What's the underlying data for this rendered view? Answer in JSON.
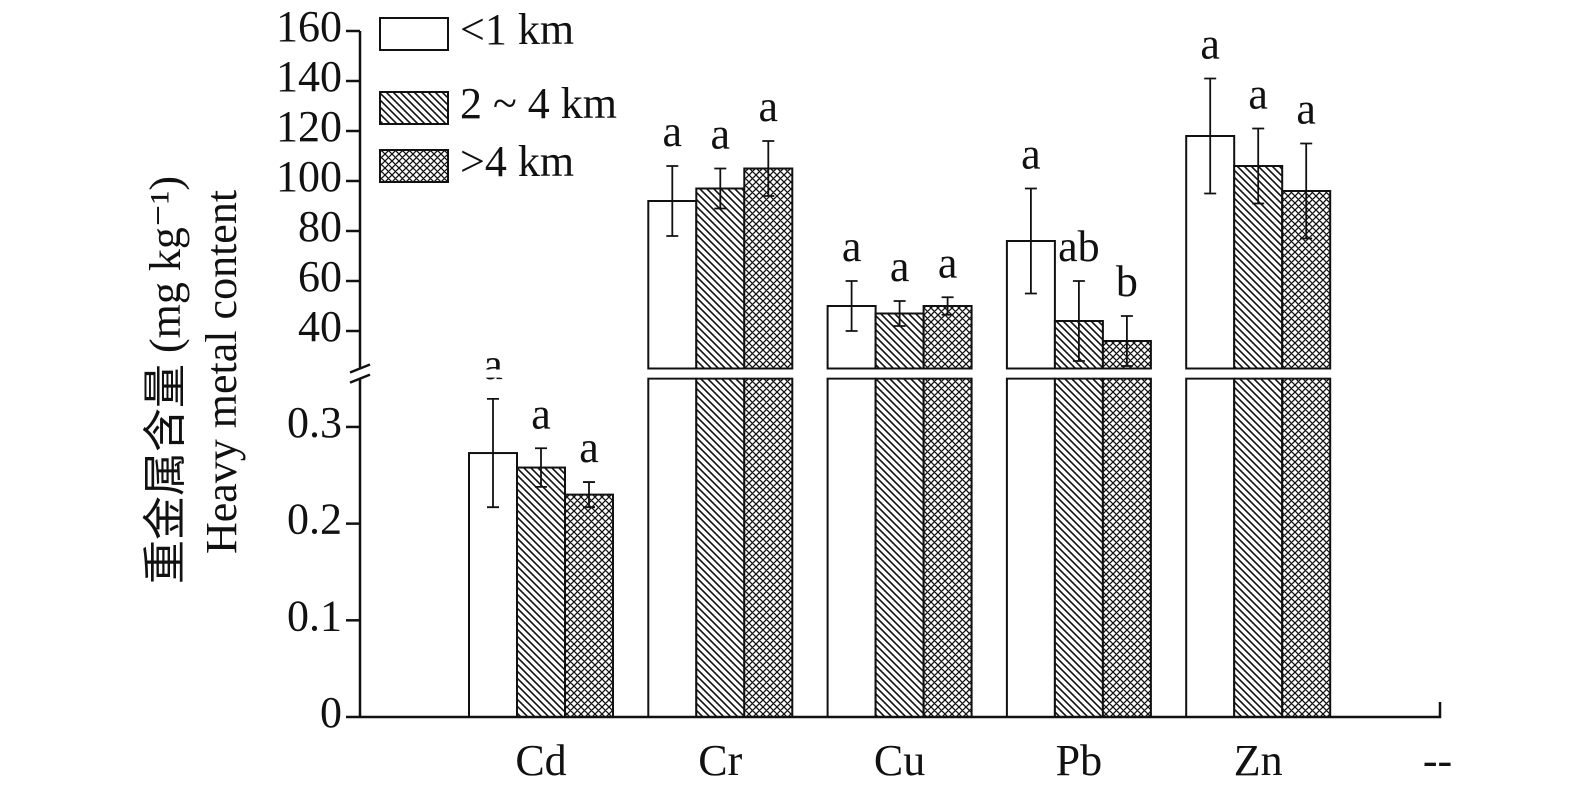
{
  "chart_data": {
    "type": "bar",
    "ylabel": [
      "重金属含量 (mg kg⁻¹)",
      "Heavy metal content"
    ],
    "categories": [
      "Cd",
      "Cr",
      "Cu",
      "Pb",
      "Zn",
      "--"
    ],
    "y_axis_by_category": [
      "y",
      "y2",
      "y2",
      "y2",
      "y2",
      null
    ],
    "axis_break": true,
    "ylim": [
      0,
      0.35
    ],
    "yticks": [
      0,
      0.1,
      0.2,
      0.3
    ],
    "y2lim": [
      25,
      160
    ],
    "y2ticks": [
      40,
      60,
      80,
      100,
      120,
      140,
      160
    ],
    "legend": "top-left",
    "series": [
      {
        "name": "<1 km",
        "color": "#ffffff",
        "pattern": "none",
        "values": [
          0.273,
          92,
          50,
          76,
          118,
          null
        ],
        "errors": [
          0.056,
          14,
          10,
          21,
          23,
          null
        ],
        "letters": [
          "a",
          "a",
          "a",
          "a",
          "a",
          null
        ]
      },
      {
        "name": "2 ~ 4 km",
        "color": "#ffffff",
        "pattern": "hatch",
        "values": [
          0.258,
          97,
          47,
          44,
          106,
          null
        ],
        "errors": [
          0.02,
          8,
          5,
          16,
          15,
          null
        ],
        "letters": [
          "a",
          "a",
          "a",
          "ab",
          "a",
          null
        ]
      },
      {
        "name": ">4 km",
        "color": "#ffffff",
        "pattern": "crosshatch",
        "values": [
          0.23,
          105,
          50,
          36,
          96,
          null
        ],
        "errors": [
          0.013,
          11,
          3.5,
          10,
          19,
          null
        ],
        "letters": [
          "a",
          "a",
          "a",
          "b",
          "a",
          null
        ]
      }
    ]
  }
}
